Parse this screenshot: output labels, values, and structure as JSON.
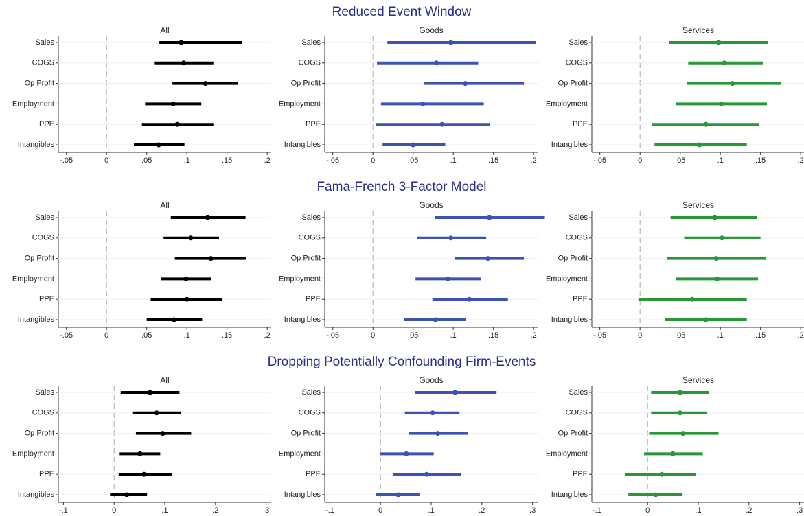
{
  "sections": [
    "Reduced Event Window",
    "Fama-French 3-Factor Model",
    "Dropping Potentially Confounding Firm-Events"
  ],
  "chart_data": [
    {
      "type": "coefplot",
      "title": "All",
      "color": "#000000",
      "grid": true,
      "xline": 0,
      "categories": [
        "Sales",
        "COGS",
        "Op Profit",
        "Employment",
        "PPE",
        "Intangibles"
      ],
      "values": [
        0.093,
        0.096,
        0.123,
        0.083,
        0.088,
        0.065
      ],
      "low": [
        0.065,
        0.06,
        0.082,
        0.048,
        0.044,
        0.034
      ],
      "high": [
        0.169,
        0.133,
        0.164,
        0.118,
        0.133,
        0.097
      ],
      "xlim": [
        -0.06,
        0.205
      ],
      "xticks": [
        {
          "value": -0.05,
          "label": "-.05"
        },
        0,
        {
          "value": 0.05,
          "label": ".05"
        },
        {
          "value": 0.1,
          "label": ".1"
        },
        {
          "value": 0.15,
          "label": ".15"
        },
        {
          "value": 0.2,
          "label": ".2"
        }
      ]
    },
    {
      "type": "coefplot",
      "title": "Goods",
      "color": "#3c53b4",
      "grid": true,
      "xline": 0,
      "categories": [
        "Sales",
        "COGS",
        "Op Profit",
        "Employment",
        "PPE",
        "Intangibles"
      ],
      "values": [
        0.097,
        0.079,
        0.115,
        0.062,
        0.086,
        0.05
      ],
      "low": [
        0.018,
        0.005,
        0.064,
        0.01,
        0.004,
        0.012
      ],
      "high": [
        0.203,
        0.131,
        0.188,
        0.138,
        0.146,
        0.09
      ],
      "xlim": [
        -0.06,
        0.205
      ],
      "xticks": [
        {
          "value": -0.05,
          "label": "-.05"
        },
        0,
        {
          "value": 0.05,
          "label": ".05"
        },
        {
          "value": 0.1,
          "label": ".1"
        },
        {
          "value": 0.15,
          "label": ".15"
        },
        {
          "value": 0.2,
          "label": ".2"
        }
      ]
    },
    {
      "type": "coefplot",
      "title": "Services",
      "color": "#2a963a",
      "grid": true,
      "xline": 0,
      "categories": [
        "Sales",
        "COGS",
        "Op Profit",
        "Employment",
        "PPE",
        "Intangibles"
      ],
      "values": [
        0.098,
        0.105,
        0.115,
        0.101,
        0.082,
        0.074
      ],
      "low": [
        0.036,
        0.06,
        0.058,
        0.045,
        0.015,
        0.018
      ],
      "high": [
        0.159,
        0.153,
        0.176,
        0.158,
        0.148,
        0.133
      ],
      "xlim": [
        -0.06,
        0.205
      ],
      "xticks": [
        {
          "value": -0.05,
          "label": "-.05"
        },
        0,
        {
          "value": 0.05,
          "label": ".05"
        },
        {
          "value": 0.1,
          "label": ".1"
        },
        {
          "value": 0.15,
          "label": ".15"
        },
        {
          "value": 0.2,
          "label": ".2"
        }
      ]
    },
    {
      "type": "coefplot",
      "title": "All",
      "color": "#000000",
      "grid": true,
      "xline": 0,
      "categories": [
        "Sales",
        "COGS",
        "Op Profit",
        "Employment",
        "PPE",
        "Intangibles"
      ],
      "values": [
        0.126,
        0.105,
        0.13,
        0.099,
        0.1,
        0.084
      ],
      "low": [
        0.08,
        0.071,
        0.085,
        0.068,
        0.055,
        0.05
      ],
      "high": [
        0.173,
        0.14,
        0.174,
        0.13,
        0.144,
        0.119
      ],
      "xlim": [
        -0.06,
        0.205
      ],
      "xticks": [
        {
          "value": -0.05,
          "label": "-.05"
        },
        0,
        {
          "value": 0.05,
          "label": ".05"
        },
        {
          "value": 0.1,
          "label": ".1"
        },
        {
          "value": 0.15,
          "label": ".15"
        },
        {
          "value": 0.2,
          "label": ".2"
        }
      ]
    },
    {
      "type": "coefplot",
      "title": "Goods",
      "color": "#3c53b4",
      "grid": true,
      "xline": 0,
      "categories": [
        "Sales",
        "COGS",
        "Op Profit",
        "Employment",
        "PPE",
        "Intangibles"
      ],
      "values": [
        0.145,
        0.097,
        0.143,
        0.093,
        0.12,
        0.078
      ],
      "low": [
        0.077,
        0.055,
        0.102,
        0.053,
        0.074,
        0.039
      ],
      "high": [
        0.214,
        0.141,
        0.188,
        0.134,
        0.168,
        0.116
      ],
      "xlim": [
        -0.06,
        0.205
      ],
      "xticks": [
        {
          "value": -0.05,
          "label": "-.05"
        },
        0,
        {
          "value": 0.05,
          "label": ".05"
        },
        {
          "value": 0.1,
          "label": ".1"
        },
        {
          "value": 0.15,
          "label": ".15"
        },
        {
          "value": 0.2,
          "label": ".2"
        }
      ]
    },
    {
      "type": "coefplot",
      "title": "Services",
      "color": "#2a963a",
      "grid": true,
      "xline": 0,
      "categories": [
        "Sales",
        "COGS",
        "Op Profit",
        "Employment",
        "PPE",
        "Intangibles"
      ],
      "values": [
        0.093,
        0.102,
        0.095,
        0.096,
        0.065,
        0.082
      ],
      "low": [
        0.038,
        0.055,
        0.034,
        0.045,
        -0.002,
        0.031
      ],
      "high": [
        0.146,
        0.15,
        0.157,
        0.147,
        0.133,
        0.133
      ],
      "xlim": [
        -0.06,
        0.205
      ],
      "xticks": [
        {
          "value": -0.05,
          "label": "-.05"
        },
        0,
        {
          "value": 0.05,
          "label": ".05"
        },
        {
          "value": 0.1,
          "label": ".1"
        },
        {
          "value": 0.15,
          "label": ".15"
        },
        {
          "value": 0.2,
          "label": ".2"
        }
      ]
    },
    {
      "type": "coefplot",
      "title": "All",
      "color": "#000000",
      "grid": true,
      "xline": 0,
      "categories": [
        "Sales",
        "COGS",
        "Op Profit",
        "Employment",
        "PPE",
        "Intangibles"
      ],
      "values": [
        0.071,
        0.084,
        0.096,
        0.051,
        0.059,
        0.025
      ],
      "low": [
        0.013,
        0.036,
        0.043,
        0.011,
        0.009,
        -0.008
      ],
      "high": [
        0.129,
        0.132,
        0.152,
        0.091,
        0.115,
        0.065
      ],
      "xlim": [
        -0.11,
        0.31
      ],
      "xticks": [
        {
          "value": -0.1,
          "label": "-.1"
        },
        0,
        {
          "value": 0.1,
          "label": ".1"
        },
        {
          "value": 0.2,
          "label": ".2"
        },
        {
          "value": 0.3,
          "label": ".3"
        }
      ]
    },
    {
      "type": "coefplot",
      "title": "Goods",
      "color": "#3c53b4",
      "grid": true,
      "xline": 0,
      "categories": [
        "Sales",
        "COGS",
        "Op Profit",
        "Employment",
        "PPE",
        "Intangibles"
      ],
      "values": [
        0.147,
        0.103,
        0.113,
        0.051,
        0.091,
        0.035
      ],
      "low": [
        0.068,
        0.048,
        0.056,
        -0.001,
        0.024,
        -0.009
      ],
      "high": [
        0.229,
        0.156,
        0.173,
        0.105,
        0.159,
        0.077
      ],
      "xlim": [
        -0.11,
        0.31
      ],
      "xticks": [
        {
          "value": -0.1,
          "label": "-.1"
        },
        0,
        {
          "value": 0.1,
          "label": ".1"
        },
        {
          "value": 0.2,
          "label": ".2"
        },
        {
          "value": 0.3,
          "label": ".3"
        }
      ]
    },
    {
      "type": "coefplot",
      "title": "Services",
      "color": "#2a963a",
      "grid": true,
      "xline": 0,
      "categories": [
        "Sales",
        "COGS",
        "Op Profit",
        "Employment",
        "PPE",
        "Intangibles"
      ],
      "values": [
        0.064,
        0.064,
        0.07,
        0.05,
        0.028,
        0.016
      ],
      "low": [
        0.007,
        0.007,
        0.003,
        -0.007,
        -0.044,
        -0.038
      ],
      "high": [
        0.121,
        0.117,
        0.14,
        0.109,
        0.096,
        0.069
      ],
      "xlim": [
        -0.11,
        0.31
      ],
      "xticks": [
        {
          "value": -0.1,
          "label": "-.1"
        },
        0,
        {
          "value": 0.1,
          "label": ".1"
        },
        {
          "value": 0.2,
          "label": ".2"
        },
        {
          "value": 0.3,
          "label": ".3"
        }
      ]
    }
  ]
}
